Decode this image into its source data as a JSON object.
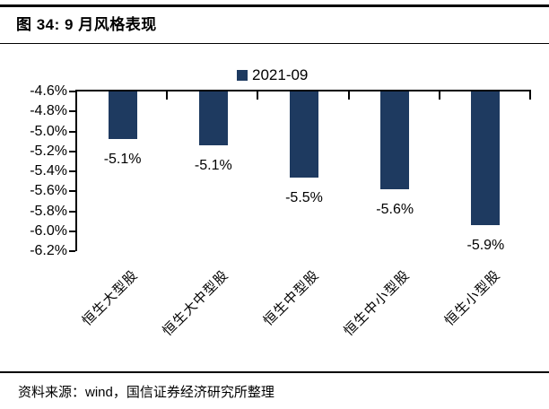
{
  "header": {
    "title": "图 34: 9 月风格表现"
  },
  "chart_data": {
    "type": "bar",
    "title": "图 34: 9 月风格表现",
    "legend_position": "top-center",
    "legend": [
      "2021-09"
    ],
    "categories": [
      "恒生大型股",
      "恒生大中型股",
      "恒生中型股",
      "恒生中小型股",
      "恒生小型股"
    ],
    "series": [
      {
        "name": "2021-09",
        "color": "#1e3a60",
        "values": [
          -5.1,
          -5.1,
          -5.5,
          -5.6,
          -5.9
        ],
        "values_precise": [
          -5.08,
          -5.14,
          -5.46,
          -5.58,
          -5.94
        ],
        "data_labels": [
          "-5.1%",
          "-5.1%",
          "-5.5%",
          "-5.6%",
          "-5.9%"
        ]
      }
    ],
    "xlabel": "",
    "ylabel": "",
    "ylim": [
      -6.2,
      -4.6
    ],
    "ytick_step": 0.2,
    "ytick_labels": [
      "-4.6%",
      "-4.8%",
      "-5.0%",
      "-5.2%",
      "-5.4%",
      "-5.6%",
      "-5.8%",
      "-6.0%",
      "-6.2%"
    ],
    "grid": false,
    "axis_color": "#000000",
    "bars_hang_from_top_of_axis": true
  },
  "footer": {
    "source": "资料来源：wind，国信证券经济研究所整理"
  }
}
